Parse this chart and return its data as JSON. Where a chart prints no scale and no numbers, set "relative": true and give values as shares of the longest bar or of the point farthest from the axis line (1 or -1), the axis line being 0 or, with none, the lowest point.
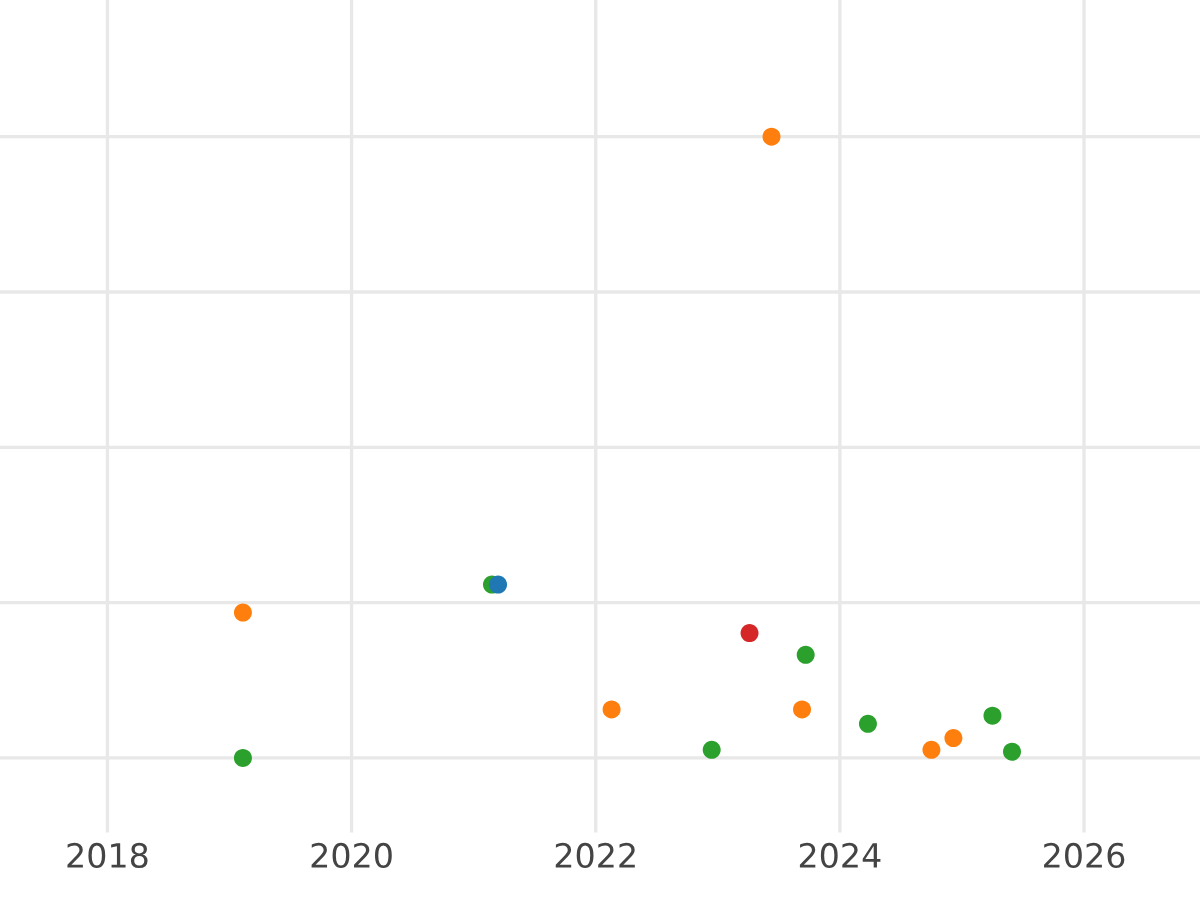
{
  "chart_data": {
    "type": "scatter",
    "relative": true,
    "grid": true,
    "tick_labels": "x",
    "marker": "circle",
    "xlim": [
      2017.12,
      2026.95
    ],
    "xticks": [
      2018,
      2020,
      2022,
      2024,
      2026
    ],
    "series": [
      {
        "color": "#ff7f0e",
        "x": [
          2019.11,
          2022.13,
          2023.44,
          2023.69,
          2024.75,
          2024.93
        ],
        "values": [
          0.234,
          0.078,
          1,
          0.078,
          0.013,
          0.032
        ]
      },
      {
        "color": "#2ca02c",
        "x": [
          2019.11,
          2021.15,
          2022.95,
          2023.72,
          2024.23,
          2025.25,
          2025.41
        ],
        "values": [
          0,
          0.279,
          0.013,
          0.166,
          0.055,
          0.068,
          0.01
        ]
      },
      {
        "color": "#d62728",
        "x": [
          2023.26
        ],
        "values": [
          0.201
        ]
      },
      {
        "color": "#1f77b4",
        "x": [
          2021.2
        ],
        "values": [
          0.279
        ]
      }
    ]
  }
}
